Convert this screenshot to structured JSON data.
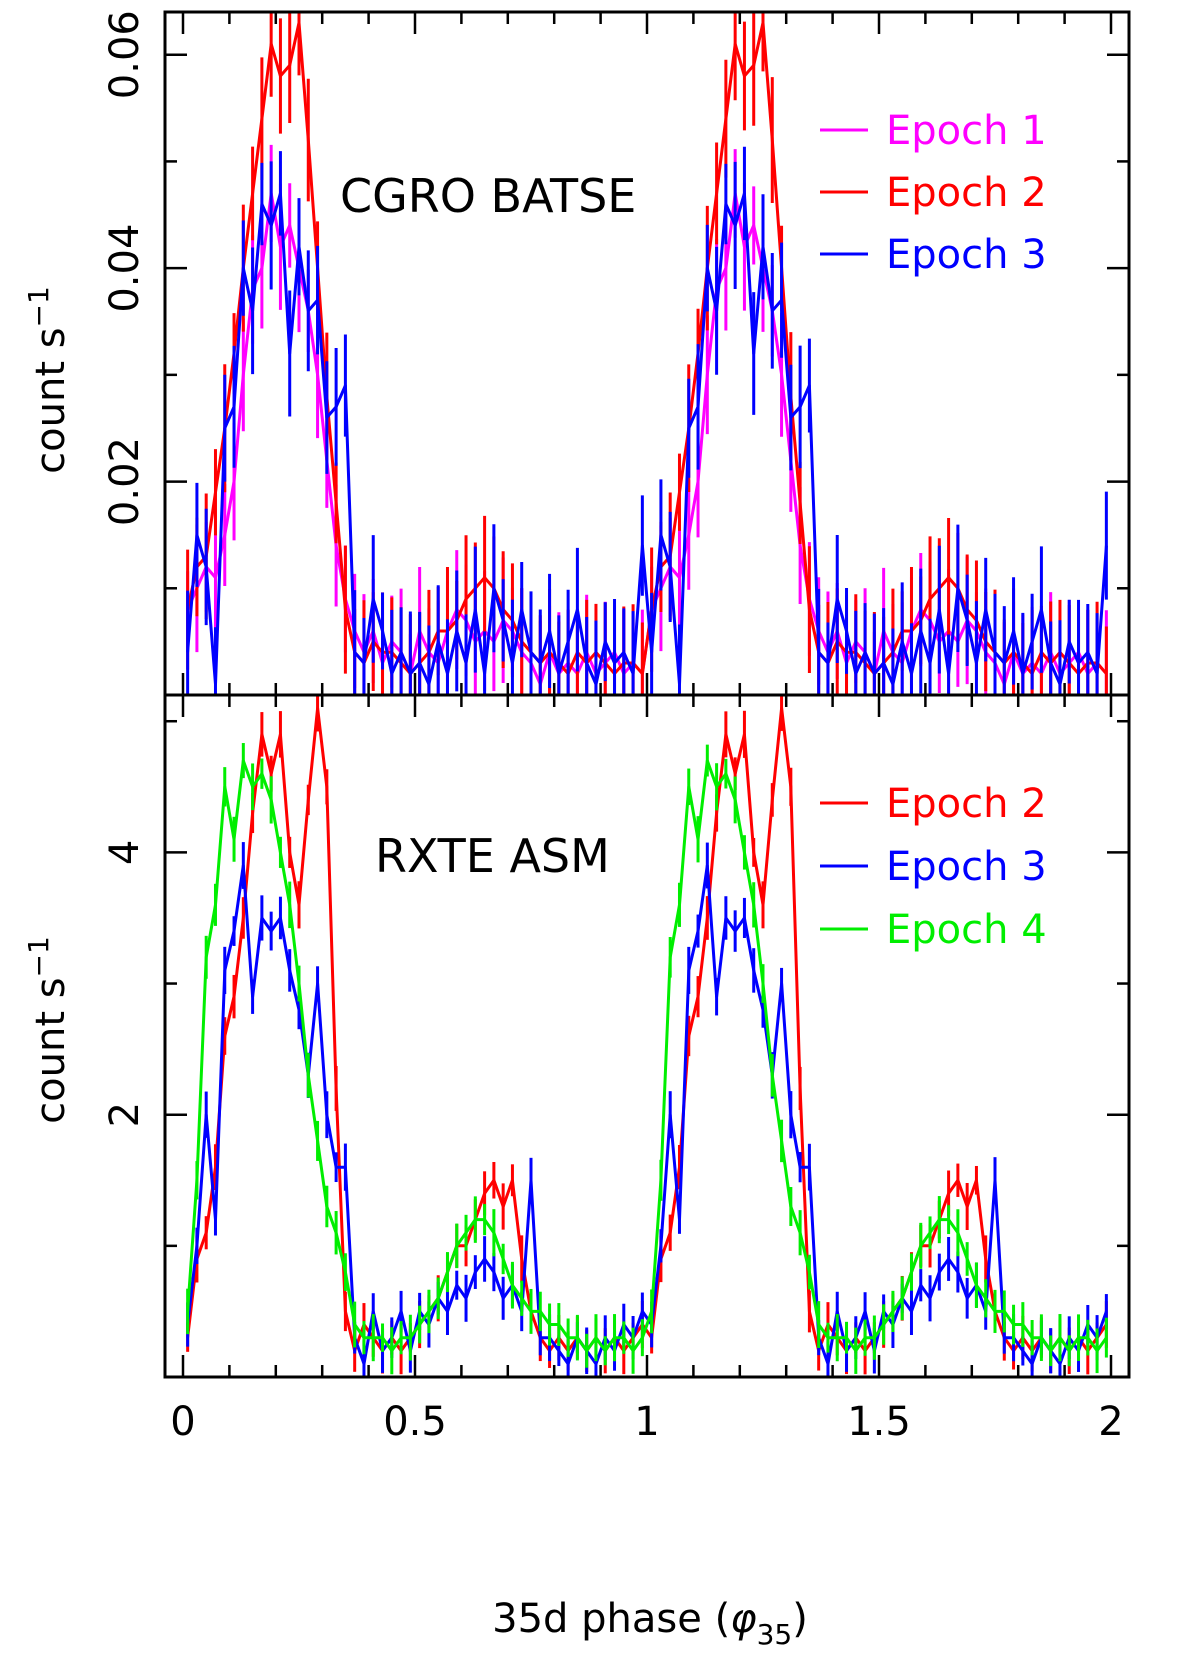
{
  "chart_data": [
    {
      "type": "line",
      "panel": "top",
      "title": "CGRO BATSE",
      "xlabel": "35d phase (φ35)",
      "ylabel": "count s−1",
      "xlim": [
        0,
        2
      ],
      "ylim": [
        0,
        0.064
      ],
      "yticks": [
        0.02,
        0.04,
        0.06
      ],
      "ytick_labels": [
        "0.02",
        "0.04",
        "0.06"
      ],
      "legend_position": "top-right",
      "grid": false,
      "series": [
        {
          "name": "Epoch 1",
          "color": "#ff00ff",
          "x": [
            0.01,
            0.03,
            0.05,
            0.07,
            0.09,
            0.11,
            0.13,
            0.15,
            0.17,
            0.19,
            0.21,
            0.23,
            0.25,
            0.27,
            0.29,
            0.31,
            0.33,
            0.35,
            0.37,
            0.39,
            0.41,
            0.43,
            0.45,
            0.47,
            0.49,
            0.51,
            0.53,
            0.55,
            0.57,
            0.59,
            0.61,
            0.63,
            0.65,
            0.67,
            0.69,
            0.71,
            0.73,
            0.75,
            0.77,
            0.79,
            0.81,
            0.83,
            0.85,
            0.87,
            0.89,
            0.91,
            0.93,
            0.95,
            0.97,
            0.99
          ],
          "values": [
            0.008,
            0.01,
            0.012,
            0.011,
            0.015,
            0.02,
            0.03,
            0.038,
            0.04,
            0.047,
            0.042,
            0.044,
            0.04,
            0.036,
            0.03,
            0.022,
            0.014,
            0.009,
            0.006,
            0.004,
            0.006,
            0.003,
            0.005,
            0.004,
            0.002,
            0.006,
            0.004,
            0.003,
            0.006,
            0.008,
            0.007,
            0.005,
            0.006,
            0.005,
            0.007,
            0.006,
            0.004,
            0.003,
            0.001,
            0.004,
            0.002,
            0.003,
            0.002,
            0.004,
            0.002,
            0.003,
            0.004,
            0.002,
            0.003,
            0.002
          ]
        },
        {
          "name": "Epoch 2",
          "color": "#ff0000",
          "x": [
            0.01,
            0.03,
            0.05,
            0.07,
            0.09,
            0.11,
            0.13,
            0.15,
            0.17,
            0.19,
            0.21,
            0.23,
            0.25,
            0.27,
            0.29,
            0.31,
            0.33,
            0.35,
            0.37,
            0.39,
            0.41,
            0.43,
            0.45,
            0.47,
            0.49,
            0.51,
            0.53,
            0.55,
            0.57,
            0.59,
            0.61,
            0.63,
            0.65,
            0.67,
            0.69,
            0.71,
            0.73,
            0.75,
            0.77,
            0.79,
            0.81,
            0.83,
            0.85,
            0.87,
            0.89,
            0.91,
            0.93,
            0.95,
            0.97,
            0.99
          ],
          "values": [
            0.008,
            0.012,
            0.013,
            0.019,
            0.025,
            0.032,
            0.04,
            0.047,
            0.054,
            0.061,
            0.058,
            0.059,
            0.063,
            0.052,
            0.04,
            0.028,
            0.018,
            0.008,
            0.004,
            0.003,
            0.005,
            0.004,
            0.004,
            0.003,
            0.002,
            0.003,
            0.004,
            0.006,
            0.006,
            0.007,
            0.009,
            0.01,
            0.011,
            0.01,
            0.008,
            0.007,
            0.005,
            0.004,
            0.003,
            0.004,
            0.003,
            0.002,
            0.004,
            0.003,
            0.004,
            0.003,
            0.002,
            0.003,
            0.003,
            0.002
          ]
        },
        {
          "name": "Epoch 3",
          "color": "#0000ff",
          "x": [
            0.01,
            0.03,
            0.05,
            0.07,
            0.09,
            0.11,
            0.13,
            0.15,
            0.17,
            0.19,
            0.21,
            0.23,
            0.25,
            0.27,
            0.29,
            0.31,
            0.33,
            0.35,
            0.37,
            0.39,
            0.41,
            0.43,
            0.45,
            0.47,
            0.49,
            0.51,
            0.53,
            0.55,
            0.57,
            0.59,
            0.61,
            0.63,
            0.65,
            0.67,
            0.69,
            0.71,
            0.73,
            0.75,
            0.77,
            0.79,
            0.81,
            0.83,
            0.85,
            0.87,
            0.89,
            0.91,
            0.93,
            0.95,
            0.97,
            0.99
          ],
          "values": [
            0.004,
            0.015,
            0.012,
            0.001,
            0.025,
            0.027,
            0.04,
            0.036,
            0.046,
            0.044,
            0.047,
            0.032,
            0.042,
            0.036,
            0.037,
            0.026,
            0.027,
            0.029,
            0.004,
            0.003,
            0.009,
            0.006,
            0.002,
            0.004,
            0.002,
            0.003,
            0.001,
            0.005,
            0.002,
            0.006,
            0.003,
            0.008,
            0.002,
            0.01,
            0.007,
            0.003,
            0.008,
            0.004,
            0.003,
            0.006,
            0.002,
            0.005,
            0.008,
            0.003,
            0.001,
            0.005,
            0.003,
            0.004,
            0.002,
            0.014
          ]
        }
      ]
    },
    {
      "type": "line",
      "panel": "bottom",
      "title": "RXTE ASM",
      "xlabel": "35d phase (φ35)",
      "ylabel": "count s−1",
      "xlim": [
        0,
        2
      ],
      "ylim": [
        0,
        5.2
      ],
      "yticks": [
        2,
        4
      ],
      "ytick_labels": [
        "2",
        "4"
      ],
      "xticks": [
        0,
        0.5,
        1,
        1.5,
        2
      ],
      "xtick_labels": [
        "0",
        "0.5",
        "1",
        "1.5",
        "2"
      ],
      "legend_position": "top-right",
      "grid": false,
      "series": [
        {
          "name": "Epoch 2",
          "color": "#ff0000",
          "x": [
            0.01,
            0.03,
            0.05,
            0.07,
            0.09,
            0.11,
            0.13,
            0.15,
            0.17,
            0.19,
            0.21,
            0.23,
            0.25,
            0.27,
            0.29,
            0.31,
            0.33,
            0.35,
            0.37,
            0.39,
            0.41,
            0.43,
            0.45,
            0.47,
            0.49,
            0.51,
            0.53,
            0.55,
            0.57,
            0.59,
            0.61,
            0.63,
            0.65,
            0.67,
            0.69,
            0.71,
            0.73,
            0.75,
            0.77,
            0.79,
            0.81,
            0.83,
            0.85,
            0.87,
            0.89,
            0.91,
            0.93,
            0.95,
            0.97,
            0.99
          ],
          "values": [
            0.3,
            0.9,
            1.1,
            1.6,
            2.6,
            2.9,
            3.5,
            4.3,
            4.9,
            4.6,
            4.9,
            4.0,
            3.6,
            4.4,
            5.1,
            4.5,
            2.2,
            0.5,
            0.2,
            0.4,
            0.3,
            0.2,
            0.3,
            0.2,
            0.3,
            0.4,
            0.5,
            0.6,
            0.8,
            1.0,
            1.0,
            1.2,
            1.4,
            1.5,
            1.3,
            1.5,
            0.9,
            0.5,
            0.3,
            0.2,
            0.3,
            0.2,
            0.3,
            0.2,
            0.3,
            0.2,
            0.3,
            0.2,
            0.3,
            0.4
          ]
        },
        {
          "name": "Epoch 3",
          "color": "#0000ff",
          "x": [
            0.01,
            0.03,
            0.05,
            0.07,
            0.09,
            0.11,
            0.13,
            0.15,
            0.17,
            0.19,
            0.21,
            0.23,
            0.25,
            0.27,
            0.29,
            0.31,
            0.33,
            0.35,
            0.37,
            0.39,
            0.41,
            0.43,
            0.45,
            0.47,
            0.49,
            0.51,
            0.53,
            0.55,
            0.57,
            0.59,
            0.61,
            0.63,
            0.65,
            0.67,
            0.69,
            0.71,
            0.73,
            0.75,
            0.77,
            0.79,
            0.81,
            0.83,
            0.85,
            0.87,
            0.89,
            0.91,
            0.93,
            0.95,
            0.97,
            0.99
          ],
          "values": [
            0.4,
            1.0,
            2.0,
            1.2,
            3.1,
            3.4,
            3.9,
            2.9,
            3.5,
            3.4,
            3.5,
            3.1,
            2.8,
            2.3,
            3.0,
            2.0,
            1.6,
            1.6,
            0.3,
            0.1,
            0.5,
            0.2,
            0.3,
            0.5,
            0.2,
            0.5,
            0.4,
            0.6,
            0.5,
            0.7,
            0.6,
            0.8,
            0.9,
            0.8,
            0.6,
            0.7,
            0.5,
            1.5,
            0.3,
            0.3,
            0.2,
            0.1,
            0.3,
            0.2,
            0.1,
            0.3,
            0.2,
            0.4,
            0.3,
            0.5
          ]
        },
        {
          "name": "Epoch 4",
          "color": "#00ee00",
          "x": [
            0.01,
            0.03,
            0.05,
            0.07,
            0.09,
            0.11,
            0.13,
            0.15,
            0.17,
            0.19,
            0.21,
            0.23,
            0.25,
            0.27,
            0.29,
            0.31,
            0.33,
            0.35,
            0.37,
            0.39,
            0.41,
            0.43,
            0.45,
            0.47,
            0.49,
            0.51,
            0.53,
            0.55,
            0.57,
            0.59,
            0.61,
            0.63,
            0.65,
            0.67,
            0.69,
            0.71,
            0.73,
            0.75,
            0.77,
            0.79,
            0.81,
            0.83,
            0.85,
            0.87,
            0.89,
            0.91,
            0.93,
            0.95,
            0.97,
            0.99
          ],
          "values": [
            0.5,
            1.5,
            3.2,
            3.6,
            4.5,
            4.1,
            4.7,
            4.5,
            4.6,
            4.4,
            4.0,
            3.6,
            3.0,
            2.3,
            1.8,
            1.3,
            1.1,
            0.8,
            0.4,
            0.3,
            0.3,
            0.3,
            0.2,
            0.3,
            0.3,
            0.4,
            0.5,
            0.6,
            0.8,
            1.0,
            1.1,
            1.2,
            1.2,
            1.1,
            0.9,
            0.7,
            0.6,
            0.5,
            0.5,
            0.4,
            0.4,
            0.3,
            0.3,
            0.2,
            0.3,
            0.2,
            0.3,
            0.3,
            0.2,
            0.3
          ]
        }
      ]
    }
  ]
}
